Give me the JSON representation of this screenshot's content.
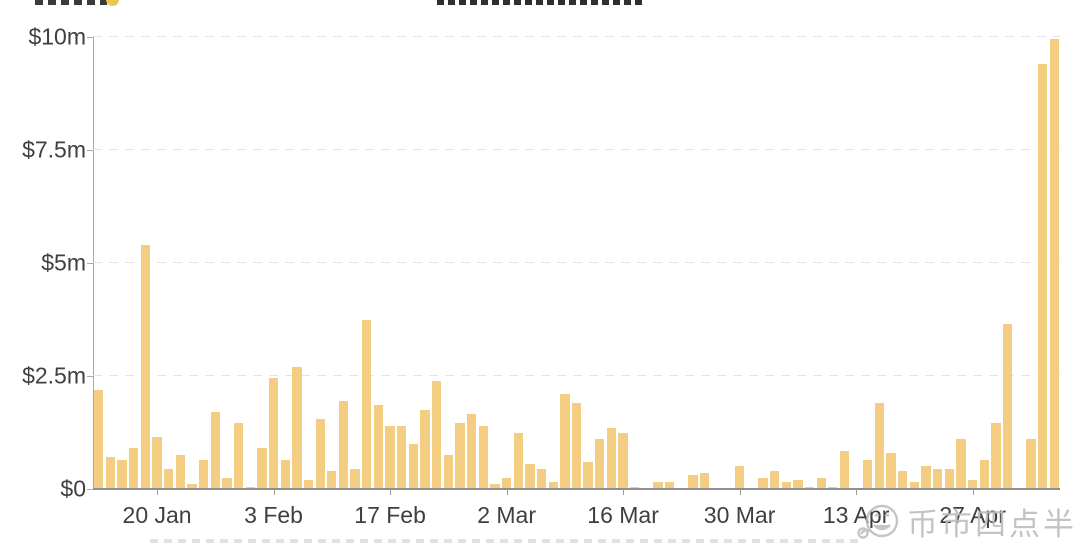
{
  "chart_data": {
    "type": "bar",
    "title": "",
    "unit": "USD millions per bar (weekday volume)",
    "ylim": [
      0,
      10
    ],
    "grid": "dashed-horizontal",
    "legend": "none",
    "bar_color": "#F3CD81",
    "axis_color": "#A6A6A6",
    "grid_color": "#E3E3E3",
    "label_color": "#3F3F3F",
    "y_ticks": [
      {
        "value": 10,
        "label": "$10m"
      },
      {
        "value": 7.5,
        "label": "$7.5m"
      },
      {
        "value": 5,
        "label": "$5m"
      },
      {
        "value": 2.5,
        "label": "$2.5m"
      },
      {
        "value": 0,
        "label": "$0"
      }
    ],
    "x_ticks": [
      {
        "index": 5,
        "label": "20 Jan"
      },
      {
        "index": 15,
        "label": "3 Feb"
      },
      {
        "index": 25,
        "label": "17 Feb"
      },
      {
        "index": 35,
        "label": "2 Mar"
      },
      {
        "index": 45,
        "label": "16 Mar"
      },
      {
        "index": 55,
        "label": "30 Mar"
      },
      {
        "index": 65,
        "label": "13 Apr"
      },
      {
        "index": 75,
        "label": "27 Apr"
      }
    ],
    "values": [
      2.2,
      0.7,
      0.65,
      0.9,
      5.4,
      1.15,
      0.45,
      0.75,
      0.1,
      0.65,
      1.7,
      0.25,
      1.45,
      0.05,
      0.9,
      2.45,
      0.65,
      2.7,
      0.2,
      1.55,
      0.4,
      1.95,
      0.45,
      3.75,
      1.85,
      1.4,
      1.4,
      1.0,
      1.75,
      2.4,
      0.75,
      1.45,
      1.65,
      1.4,
      0.1,
      0.25,
      1.25,
      0.55,
      0.45,
      0.15,
      2.1,
      1.9,
      0.6,
      1.1,
      1.35,
      1.25,
      0.05,
      0,
      0.15,
      0.15,
      0,
      0.3,
      0.35,
      0,
      0,
      0.5,
      0,
      0.25,
      0.4,
      0.15,
      0.2,
      0.05,
      0.25,
      0.05,
      0.85,
      0.03,
      0.65,
      1.9,
      0.8,
      0.4,
      0.15,
      0.5,
      0.45,
      0.45,
      1.1,
      0.2,
      0.65,
      1.45,
      3.65,
      0,
      1.1,
      9.4,
      9.95
    ]
  },
  "watermark": {
    "text": "币市四点半",
    "icon": "wechat-emoji-icon",
    "color": "#BDBDBD"
  }
}
